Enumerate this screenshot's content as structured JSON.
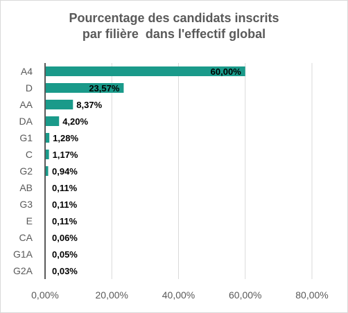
{
  "chart_data": {
    "type": "bar",
    "orientation": "horizontal",
    "title_lines": [
      "Pourcentage des candidats inscrits",
      "par filière  dans l'effectif global"
    ],
    "categories": [
      "A4",
      "D",
      "AA",
      "DA",
      "G1",
      "C",
      "G2",
      "AB",
      "G3",
      "E",
      "CA",
      "G1A",
      "G2A"
    ],
    "values": [
      60.0,
      23.57,
      8.37,
      4.2,
      1.28,
      1.17,
      0.94,
      0.11,
      0.11,
      0.11,
      0.06,
      0.05,
      0.03
    ],
    "value_labels": [
      "60,00%",
      "23,57%",
      "8,37%",
      "4,20%",
      "1,28%",
      "1,17%",
      "0,94%",
      "0,11%",
      "0,11%",
      "0,11%",
      "0,06%",
      "0,05%",
      "0,03%"
    ],
    "x_ticks": [
      0,
      20,
      40,
      60,
      80
    ],
    "x_tick_labels": [
      "0,00%",
      "20,00%",
      "40,00%",
      "60,00%",
      "80,00%"
    ],
    "xlim": [
      0,
      80
    ],
    "grid": true,
    "colors": {
      "bar": "#1a9a8a",
      "grid": "#d9d9d9",
      "axis": "#595959",
      "title": "#595959",
      "label": "#000000"
    }
  }
}
